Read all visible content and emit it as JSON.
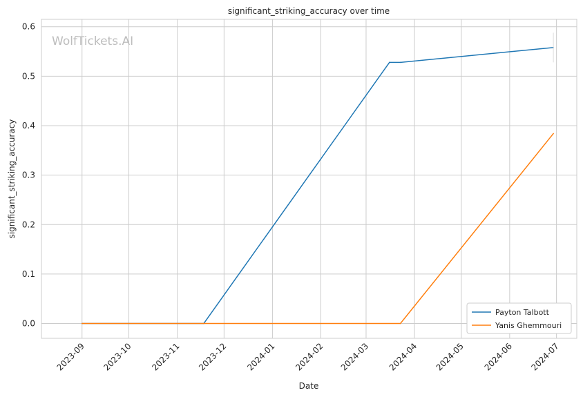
{
  "watermark": "WolfTickets.AI",
  "colors": {
    "series_1": "#1f77b4",
    "series_2": "#ff7f0e",
    "grid": "#cccccc",
    "frame": "#cccccc"
  },
  "chart_data": {
    "type": "line",
    "title": "significant_striking_accuracy over time",
    "xlabel": "Date",
    "ylabel": "significant_striking_accuracy",
    "x_axis": "date",
    "x_ticks": [
      "2023-09",
      "2023-10",
      "2023-11",
      "2023-12",
      "2024-01",
      "2024-02",
      "2024-03",
      "2024-04",
      "2024-05",
      "2024-06",
      "2024-07"
    ],
    "y_ticks": [
      0.0,
      0.1,
      0.2,
      0.3,
      0.4,
      0.5,
      0.6
    ],
    "ylim": [
      -0.03,
      0.615
    ],
    "xlim": [
      "2023-08-06",
      "2024-07-14"
    ],
    "grid": true,
    "legend_position": "bottom-right",
    "series": [
      {
        "name": "Payton Talbott",
        "points": [
          {
            "x": "2023-09-01",
            "y": 0.0
          },
          {
            "x": "2023-11-18",
            "y": 0.0
          },
          {
            "x": "2024-03-16",
            "y": 0.528
          },
          {
            "x": "2024-03-23",
            "y": 0.528
          },
          {
            "x": "2024-06-29",
            "y": 0.558
          }
        ],
        "error_bars": [
          {
            "x": "2024-06-29",
            "low": 0.528,
            "high": 0.588
          }
        ]
      },
      {
        "name": "Yanis Ghemmouri",
        "points": [
          {
            "x": "2023-09-01",
            "y": 0.0
          },
          {
            "x": "2024-03-23",
            "y": 0.0
          },
          {
            "x": "2024-06-29",
            "y": 0.384
          }
        ]
      }
    ]
  }
}
